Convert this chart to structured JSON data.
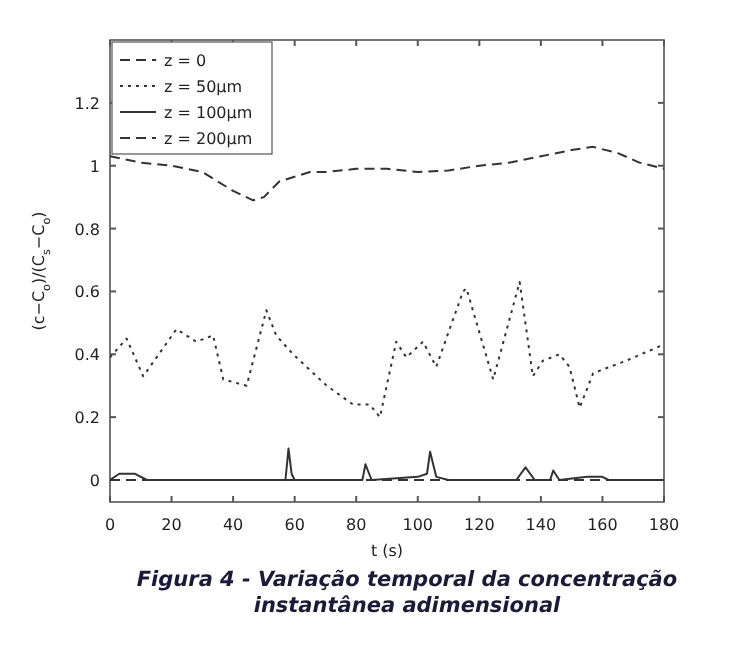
{
  "chart_data": {
    "type": "line",
    "title": "Figura 4 - Variação temporal da concentração instantânea adimensional",
    "xlabel": "t (s)",
    "ylabel": "(c−C$_{o}$)/(C$_{s}$−C$_{o}$)",
    "xlim": [
      0,
      180
    ],
    "xticks": [
      0,
      20,
      40,
      60,
      80,
      100,
      120,
      140,
      160,
      180
    ],
    "ylim": [
      -0.07,
      1.4
    ],
    "yticks": [
      0,
      0.2,
      0.4,
      0.6,
      0.8,
      1,
      1.2
    ],
    "grid": false,
    "legend": "top left",
    "series": [
      {
        "name": "z = 0",
        "color": "#333333",
        "line_style": "dashed",
        "x": [
          0,
          5,
          10,
          20,
          30,
          35,
          40,
          46.5,
          50,
          55,
          65,
          70,
          80,
          90,
          100,
          110,
          120,
          130,
          140,
          150,
          157,
          165,
          172,
          180
        ],
        "values": [
          1.03,
          1.02,
          1.01,
          1.0,
          0.98,
          0.95,
          0.92,
          0.89,
          0.9,
          0.95,
          0.98,
          0.98,
          0.99,
          0.99,
          0.98,
          0.985,
          1.0,
          1.01,
          1.03,
          1.05,
          1.06,
          1.04,
          1.01,
          0.99
        ]
      },
      {
        "name": "z = 50μm",
        "color": "#333333",
        "line_style": "dotted",
        "x": [
          0,
          5.4,
          10.8,
          21.6,
          28,
          33.5,
          36.8,
          44.4,
          50.8,
          54,
          59.5,
          70.4,
          79,
          84.4,
          87.7,
          93,
          96.3,
          101.7,
          106,
          114.7,
          115.8,
          124.5,
          133.1,
          137.4,
          140.7,
          146,
          149.3,
          152.6,
          157,
          167.8,
          179.7
        ],
        "values": [
          0.39,
          0.45,
          0.33,
          0.48,
          0.44,
          0.46,
          0.32,
          0.3,
          0.54,
          0.46,
          0.4,
          0.3,
          0.24,
          0.24,
          0.2,
          0.44,
          0.39,
          0.44,
          0.36,
          0.6,
          0.61,
          0.32,
          0.63,
          0.33,
          0.38,
          0.4,
          0.36,
          0.23,
          0.34,
          0.38,
          0.43
        ]
      },
      {
        "name": "z = 100μm",
        "color": "#333333",
        "line_style": "solid",
        "x": [
          0,
          3,
          8,
          12,
          57,
          58,
          59,
          60,
          82,
          83,
          85,
          100,
          103,
          104,
          106,
          110,
          132,
          135,
          138,
          143,
          144,
          146,
          155,
          160,
          162,
          180
        ],
        "values": [
          0,
          0.02,
          0.02,
          0,
          0,
          0.1,
          0.02,
          0,
          0,
          0.05,
          0,
          0.01,
          0.02,
          0.09,
          0.01,
          0,
          0,
          0.04,
          0,
          0,
          0.03,
          0,
          0.01,
          0.01,
          0,
          0
        ]
      },
      {
        "name": "z = 200μm",
        "color": "#333333",
        "line_style": "dashed",
        "x": [
          0,
          180
        ],
        "values": [
          0,
          0
        ]
      }
    ]
  }
}
